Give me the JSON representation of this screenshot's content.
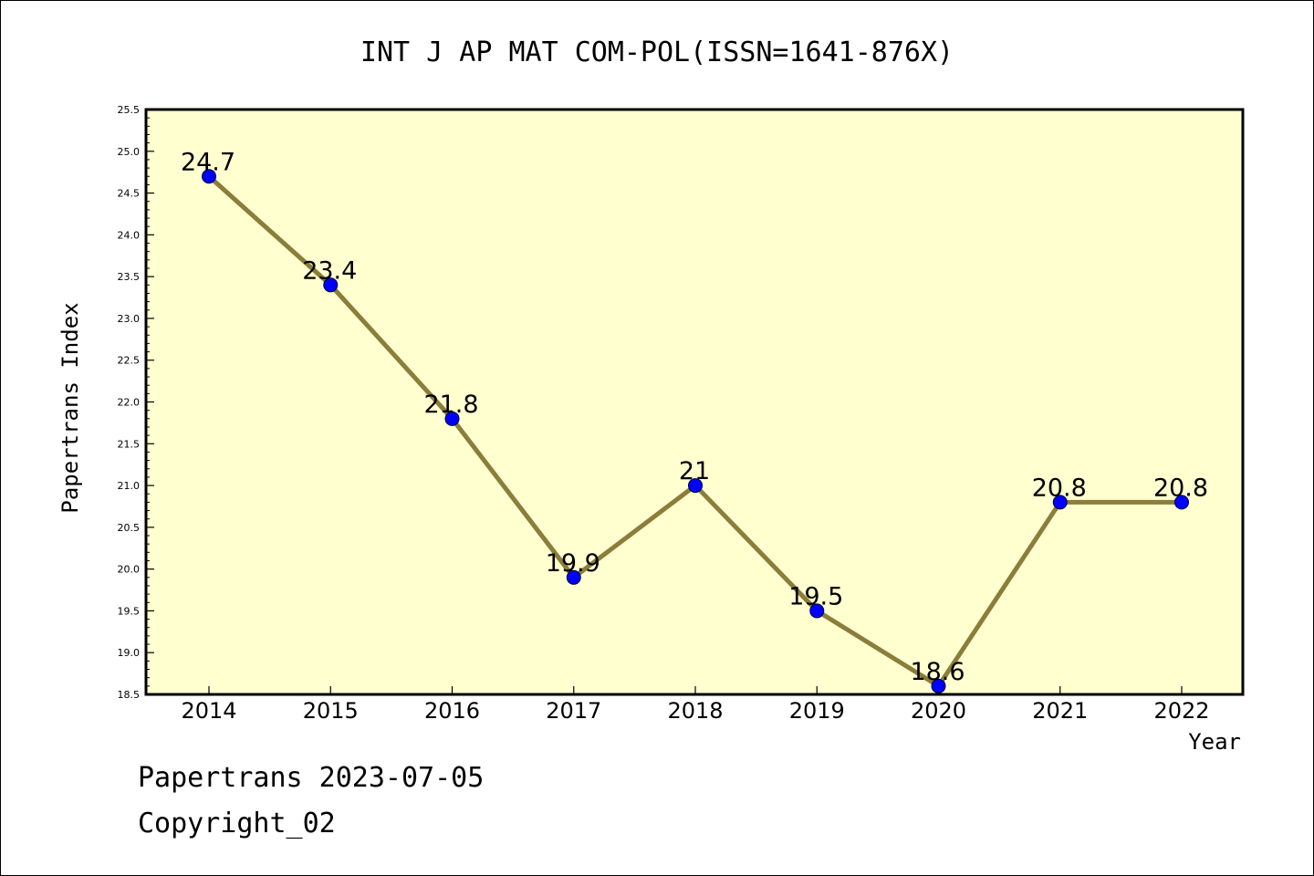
{
  "chart_data": {
    "type": "line",
    "title": "INT J AP MAT COM-POL(ISSN=1641-876X)",
    "xlabel": "Year",
    "ylabel": "Papertrans Index",
    "categories": [
      "2014",
      "2015",
      "2016",
      "2017",
      "2018",
      "2019",
      "2020",
      "2021",
      "2022"
    ],
    "series": [
      {
        "values": [
          24.7,
          23.4,
          21.8,
          19.9,
          21,
          19.5,
          18.6,
          20.8,
          20.8
        ],
        "data_labels": [
          "24.7",
          "23.4",
          "21.8",
          "19.9",
          "21",
          "19.5",
          "18.6",
          "20.8",
          "20.8"
        ],
        "line_color": "#8b7d3a",
        "marker_color": "#0000ff"
      }
    ],
    "ylim": [
      18.5,
      25.5
    ],
    "y_major_ticks": [
      "18.5",
      "19.0",
      "19.5",
      "20.0",
      "20.5",
      "21.0",
      "21.5",
      "22.0",
      "22.5",
      "23.0",
      "23.5",
      "24.0",
      "24.5",
      "25.0",
      "25.5"
    ],
    "plot_background": "#ffffd0",
    "grid": false,
    "legend": "none"
  },
  "footer": {
    "date_line": "Papertrans 2023-07-05",
    "copyright_line": "Copyright_02"
  }
}
